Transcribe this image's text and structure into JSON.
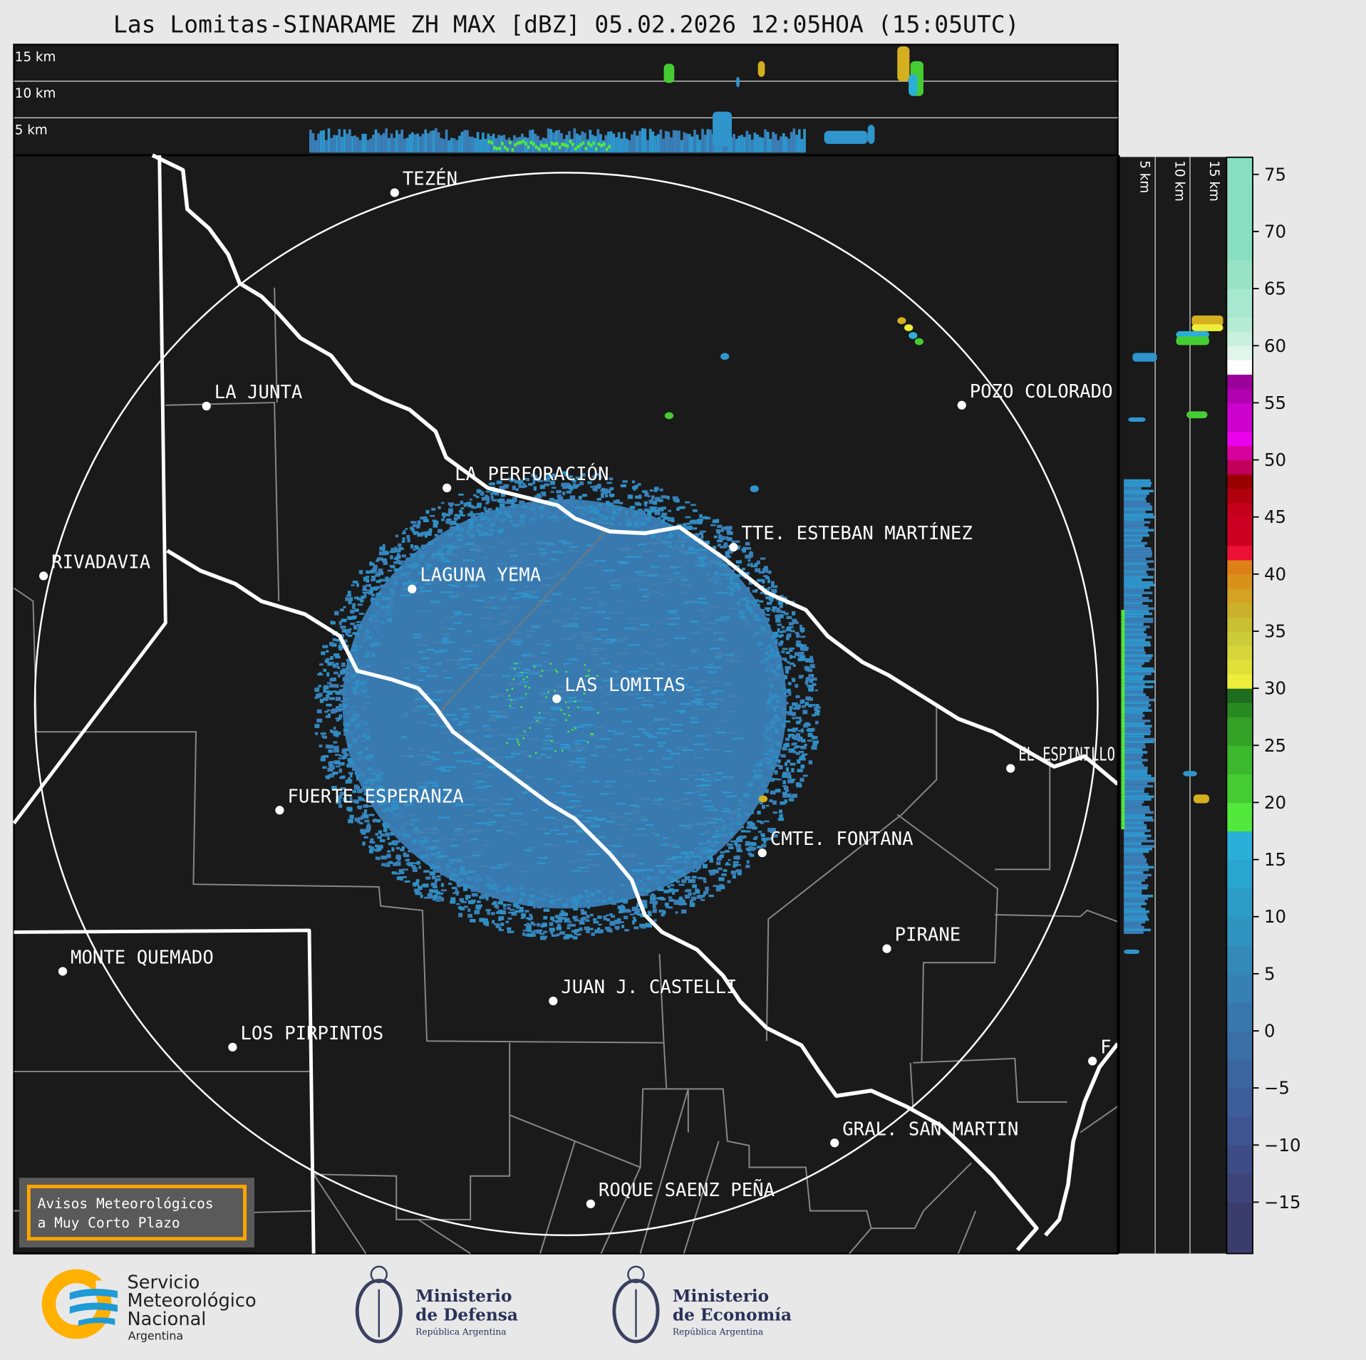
{
  "title": "Las Lomitas-SINARAME ZH MAX [dBZ] 05.02.2026 12:05HOA (15:05UTC)",
  "top_section": {
    "height_labels": [
      "15 km",
      "10 km",
      "5 km"
    ]
  },
  "side_section": {
    "height_labels": [
      "5 km",
      "10 km",
      "15 km"
    ]
  },
  "cities": [
    {
      "name": "TEZÉN"
    },
    {
      "name": "LA JUNTA"
    },
    {
      "name": "POZO COLORADO"
    },
    {
      "name": "LA PERFORACIÓN"
    },
    {
      "name": "TTE. ESTEBAN MARTÍNEZ"
    },
    {
      "name": "RIVADAVIA"
    },
    {
      "name": "LAGUNA YEMA"
    },
    {
      "name": "LAS LOMITAS"
    },
    {
      "name": "EL ESPINILLO"
    },
    {
      "name": "FUERTE ESPERANZA"
    },
    {
      "name": "CMTE. FONTANA"
    },
    {
      "name": "PIRANE"
    },
    {
      "name": "MONTE QUEMADO"
    },
    {
      "name": "JUAN J. CASTELLI"
    },
    {
      "name": "LOS PIRPINTOS"
    },
    {
      "name": "GRAL. SAN MARTIN"
    },
    {
      "name": "ROQUE SAENZ PEÑA"
    },
    {
      "name": "F"
    }
  ],
  "warning_box": {
    "line1": "Avisos Meteorológicos",
    "line2": "a Muy Corto Plazo",
    "border_color": "#ffa500"
  },
  "colorbar": {
    "unit": "dBZ",
    "range": [
      -19.5,
      76.5
    ],
    "ticks": [
      "75",
      "70",
      "65",
      "60",
      "55",
      "50",
      "45",
      "40",
      "35",
      "30",
      "25",
      "20",
      "15",
      "10",
      "5",
      "0",
      "−5",
      "−10",
      "−15"
    ],
    "tick_values": [
      75,
      70,
      65,
      60,
      55,
      50,
      45,
      40,
      35,
      30,
      25,
      20,
      15,
      10,
      5,
      0,
      -5,
      -10,
      -15
    ],
    "bands": [
      [
        -19.5,
        "#3a3d6b"
      ],
      [
        -15,
        "#3c4478"
      ],
      [
        -12.5,
        "#3d4c85"
      ],
      [
        -10,
        "#3d5490"
      ],
      [
        -7.5,
        "#3c5d98"
      ],
      [
        -5,
        "#3b669f"
      ],
      [
        -2.5,
        "#3a6ea6"
      ],
      [
        0,
        "#3877ad"
      ],
      [
        2.5,
        "#3680b3"
      ],
      [
        5,
        "#338ab9"
      ],
      [
        7.5,
        "#3094c0"
      ],
      [
        10,
        "#2c9dc7"
      ],
      [
        12.5,
        "#29a6cf"
      ],
      [
        15,
        "#2aafd8"
      ],
      [
        17.5,
        "#52e83c"
      ],
      [
        20,
        "#45cc33"
      ],
      [
        22.5,
        "#3cb82c"
      ],
      [
        25,
        "#33a026"
      ],
      [
        27.5,
        "#2a8a22"
      ],
      [
        28.75,
        "#1e6c1e"
      ],
      [
        30,
        "#eeee3a"
      ],
      [
        31.25,
        "#e0e03a"
      ],
      [
        32.5,
        "#d6d63a"
      ],
      [
        33.75,
        "#cccc38"
      ],
      [
        35,
        "#c8c032"
      ],
      [
        36.25,
        "#ccb02c"
      ],
      [
        37.5,
        "#d4a224"
      ],
      [
        38.75,
        "#d8921c"
      ],
      [
        40,
        "#dd8018"
      ],
      [
        41.25,
        "#ee1035"
      ],
      [
        42.5,
        "#cc0022"
      ],
      [
        45,
        "#c4001c"
      ],
      [
        46.25,
        "#b00010"
      ],
      [
        47.5,
        "#9a0000"
      ],
      [
        48.75,
        "#c0005a"
      ],
      [
        50,
        "#d8009c"
      ],
      [
        51.25,
        "#ea00ea"
      ],
      [
        52.5,
        "#cc00cc"
      ],
      [
        55,
        "#b000b0"
      ],
      [
        56.25,
        "#9a009a"
      ],
      [
        57.5,
        "#ffffff"
      ],
      [
        58.75,
        "#e0f5ec"
      ],
      [
        60,
        "#c8f0e0"
      ],
      [
        61.25,
        "#b6ecd6"
      ],
      [
        62.5,
        "#a8e8d0"
      ],
      [
        65,
        "#98e2c6"
      ],
      [
        67.5,
        "#88dec0"
      ]
    ]
  },
  "logos": {
    "smn": {
      "lines": [
        "Servicio",
        "Meteorológico",
        "Nacional",
        "Argentina"
      ],
      "colors": [
        "#ffb000",
        "#1e9ad6"
      ]
    },
    "defensa": {
      "lines": [
        "Ministerio",
        "de Defensa",
        "República Argentina"
      ]
    },
    "economia": {
      "lines": [
        "Ministerio",
        "de Economía",
        "República Argentina"
      ]
    }
  },
  "colors": {
    "map_bg": "#1a1a1a",
    "page_bg": "#e8e8e8",
    "echo": "#3a7fb8"
  }
}
